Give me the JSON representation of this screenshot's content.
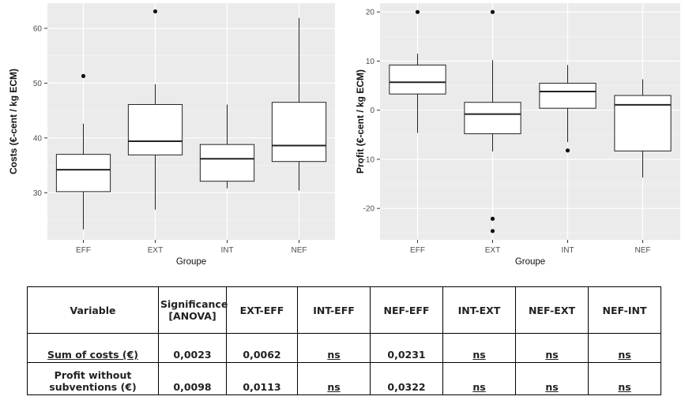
{
  "chart_data": [
    {
      "type": "boxplot",
      "title": "",
      "xlabel": "Groupe",
      "ylabel": "Costs (€-cent / kg ECM)",
      "categories": [
        "EFF",
        "EXT",
        "INT",
        "NEF"
      ],
      "yticks": [
        30,
        40,
        50,
        60
      ],
      "ylim": [
        21.4,
        64.6
      ],
      "grid": true,
      "boxes": [
        {
          "group": "EFF",
          "whisker_low": 23.3,
          "q1": 30.2,
          "median": 34.2,
          "q3": 37.0,
          "whisker_high": 42.6,
          "outliers": [
            51.3
          ]
        },
        {
          "group": "EXT",
          "whisker_low": 26.9,
          "q1": 36.9,
          "median": 39.4,
          "q3": 46.1,
          "whisker_high": 49.8,
          "outliers": [
            63.1
          ]
        },
        {
          "group": "INT",
          "whisker_low": 30.8,
          "q1": 32.1,
          "median": 36.2,
          "q3": 38.8,
          "whisker_high": 46.1,
          "outliers": []
        },
        {
          "group": "NEF",
          "whisker_low": 30.4,
          "q1": 35.7,
          "median": 38.6,
          "q3": 46.5,
          "whisker_high": 61.9,
          "outliers": []
        }
      ]
    },
    {
      "type": "boxplot",
      "title": "",
      "xlabel": "Groupe",
      "ylabel": "Profit (€-cent / kg ECM)",
      "categories": [
        "EFF",
        "EXT",
        "INT",
        "NEF"
      ],
      "yticks": [
        -20,
        -10,
        0,
        10,
        20
      ],
      "ylim": [
        -26.4,
        21.8
      ],
      "grid": true,
      "boxes": [
        {
          "group": "EFF",
          "whisker_low": -4.6,
          "q1": 3.3,
          "median": 5.7,
          "q3": 9.2,
          "whisker_high": 11.5,
          "outliers": [
            20.0
          ]
        },
        {
          "group": "EXT",
          "whisker_low": -8.4,
          "q1": -4.8,
          "median": -0.8,
          "q3": 1.6,
          "whisker_high": 10.2,
          "outliers": [
            20.0,
            -22.1,
            -24.6
          ]
        },
        {
          "group": "INT",
          "whisker_low": -6.5,
          "q1": 0.4,
          "median": 3.8,
          "q3": 5.5,
          "whisker_high": 9.2,
          "outliers": [
            -8.2
          ]
        },
        {
          "group": "NEF",
          "whisker_low": -13.7,
          "q1": -8.3,
          "median": 1.1,
          "q3": 3.0,
          "whisker_high": 6.3,
          "outliers": []
        }
      ]
    }
  ],
  "table": {
    "headers": [
      "Variable",
      "Significance [ANOVA]",
      "EXT-EFF",
      "INT-EFF",
      "NEF-EFF",
      "INT-EXT",
      "NEF-EXT",
      "NEF-INT"
    ],
    "rows": [
      {
        "variable": "Sum of costs (€)",
        "values": [
          "0,0023",
          "0,0062",
          "ns",
          "0,0231",
          "ns",
          "ns",
          "ns"
        ]
      },
      {
        "variable": "Profit without subventions (€)",
        "values": [
          "0,0098",
          "0,0113",
          "ns",
          "0,0322",
          "ns",
          "ns",
          "ns"
        ]
      }
    ]
  }
}
